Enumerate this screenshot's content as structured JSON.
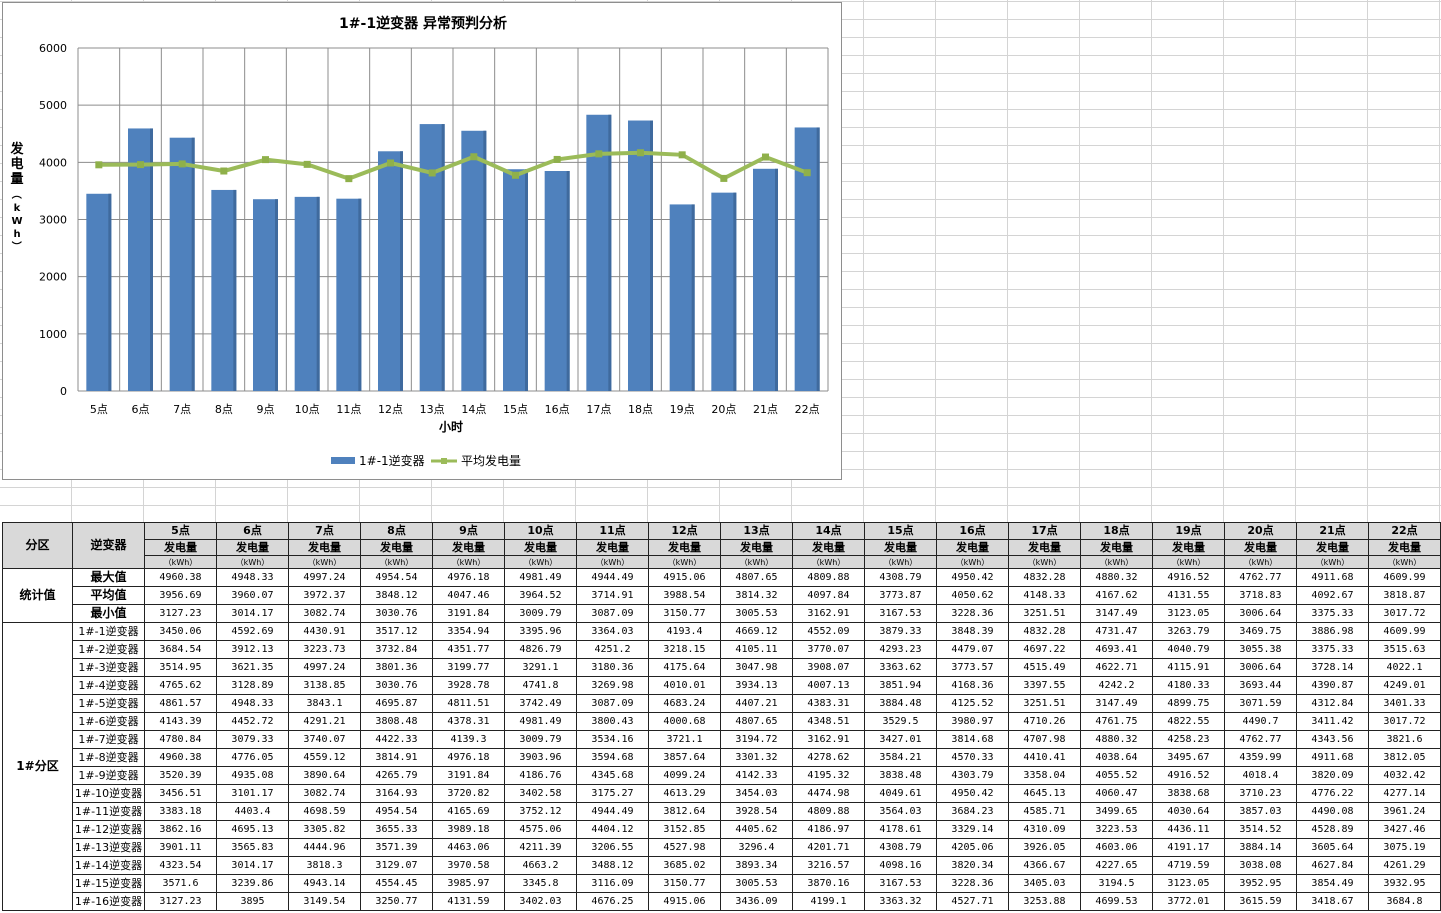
{
  "chart_data": {
    "type": "bar",
    "title": "1#-1逆变器  异常预判分析",
    "xlabel": "小时",
    "ylabel": "发电量（kWh）",
    "ylim": [
      0,
      6000
    ],
    "yticks": [
      0,
      1000,
      2000,
      3000,
      4000,
      5000,
      6000
    ],
    "grid": true,
    "legend_position": "bottom",
    "categories": [
      "5点",
      "6点",
      "7点",
      "8点",
      "9点",
      "10点",
      "11点",
      "12点",
      "13点",
      "14点",
      "15点",
      "16点",
      "17点",
      "18点",
      "19点",
      "20点",
      "21点",
      "22点"
    ],
    "series": [
      {
        "name": "1#-1逆变器",
        "kind": "bar",
        "color": "#4f81bd",
        "values": [
          3450.06,
          4592.69,
          4430.91,
          3517.12,
          3354.94,
          3395.96,
          3364.03,
          4193.4,
          4669.12,
          4552.09,
          3879.33,
          3848.39,
          4832.28,
          4731.47,
          3263.79,
          3469.75,
          3886.98,
          4609.99
        ]
      },
      {
        "name": "平均发电量",
        "kind": "line",
        "color": "#9bbb59",
        "values": [
          3956.69,
          3960.07,
          3972.37,
          3848.12,
          4047.46,
          3964.52,
          3714.91,
          3988.54,
          3814.32,
          4097.84,
          3773.87,
          4050.62,
          4148.33,
          4167.62,
          4131.55,
          3718.83,
          4092.67,
          3818.87
        ]
      }
    ]
  },
  "table": {
    "col_zone": "分区",
    "col_inverter": "逆变器",
    "metric": "发电量",
    "unit": "（kWh）",
    "hours": [
      "5点",
      "6点",
      "7点",
      "8点",
      "9点",
      "10点",
      "11点",
      "12点",
      "13点",
      "14点",
      "15点",
      "16点",
      "17点",
      "18点",
      "19点",
      "20点",
      "21点",
      "22点"
    ],
    "stats_group": "统计值",
    "stats": [
      {
        "label": "最大值",
        "values": [
          "4960.38",
          "4948.33",
          "4997.24",
          "4954.54",
          "4976.18",
          "4981.49",
          "4944.49",
          "4915.06",
          "4807.65",
          "4809.88",
          "4308.79",
          "4950.42",
          "4832.28",
          "4880.32",
          "4916.52",
          "4762.77",
          "4911.68",
          "4609.99"
        ]
      },
      {
        "label": "平均值",
        "values": [
          "3956.69",
          "3960.07",
          "3972.37",
          "3848.12",
          "4047.46",
          "3964.52",
          "3714.91",
          "3988.54",
          "3814.32",
          "4097.84",
          "3773.87",
          "4050.62",
          "4148.33",
          "4167.62",
          "4131.55",
          "3718.83",
          "4092.67",
          "3818.87"
        ]
      },
      {
        "label": "最小值",
        "values": [
          "3127.23",
          "3014.17",
          "3082.74",
          "3030.76",
          "3191.84",
          "3009.79",
          "3087.09",
          "3150.77",
          "3005.53",
          "3162.91",
          "3167.53",
          "3228.36",
          "3251.51",
          "3147.49",
          "3123.05",
          "3006.64",
          "3375.33",
          "3017.72"
        ]
      }
    ],
    "zone_group": "1#分区",
    "inverters": [
      {
        "label": "1#-1逆变器",
        "values": [
          "3450.06",
          "4592.69",
          "4430.91",
          "3517.12",
          "3354.94",
          "3395.96",
          "3364.03",
          "4193.4",
          "4669.12",
          "4552.09",
          "3879.33",
          "3848.39",
          "4832.28",
          "4731.47",
          "3263.79",
          "3469.75",
          "3886.98",
          "4609.99"
        ]
      },
      {
        "label": "1#-2逆变器",
        "values": [
          "3684.54",
          "3912.13",
          "3223.73",
          "3732.84",
          "4351.77",
          "4826.79",
          "4251.2",
          "3218.15",
          "4105.11",
          "3770.07",
          "4293.23",
          "4479.07",
          "4697.22",
          "4693.41",
          "4040.79",
          "3055.38",
          "3375.33",
          "3515.63"
        ]
      },
      {
        "label": "1#-3逆变器",
        "values": [
          "3514.95",
          "3621.35",
          "4997.24",
          "3801.36",
          "3199.77",
          "3291.1",
          "3180.36",
          "4175.64",
          "3047.98",
          "3908.07",
          "3363.62",
          "3773.57",
          "4515.49",
          "4622.71",
          "4115.91",
          "3006.64",
          "3728.14",
          "4022.1"
        ]
      },
      {
        "label": "1#-4逆变器",
        "values": [
          "4765.62",
          "3128.89",
          "3138.85",
          "3030.76",
          "3928.78",
          "4741.8",
          "3269.98",
          "4010.01",
          "3934.13",
          "4007.13",
          "3851.94",
          "4168.36",
          "3397.55",
          "4242.2",
          "4180.33",
          "3693.44",
          "4390.87",
          "4249.01"
        ]
      },
      {
        "label": "1#-5逆变器",
        "values": [
          "4861.57",
          "4948.33",
          "3843.1",
          "4695.87",
          "4811.51",
          "3742.49",
          "3087.09",
          "4683.24",
          "4407.21",
          "4383.31",
          "3884.48",
          "4125.52",
          "3251.51",
          "3147.49",
          "4899.75",
          "3071.59",
          "4312.84",
          "3401.33"
        ]
      },
      {
        "label": "1#-6逆变器",
        "values": [
          "4143.39",
          "4452.72",
          "4291.21",
          "3808.48",
          "4378.31",
          "4981.49",
          "3800.43",
          "4000.68",
          "4807.65",
          "4348.51",
          "3529.5",
          "3980.97",
          "4710.26",
          "4761.75",
          "4822.55",
          "4490.7",
          "3411.42",
          "3017.72"
        ]
      },
      {
        "label": "1#-7逆变器",
        "values": [
          "4780.84",
          "3079.33",
          "3740.07",
          "4422.33",
          "4139.3",
          "3009.79",
          "3534.16",
          "3721.1",
          "3194.72",
          "3162.91",
          "3427.01",
          "3814.68",
          "4707.98",
          "4880.32",
          "4258.23",
          "4762.77",
          "4343.56",
          "3821.6"
        ]
      },
      {
        "label": "1#-8逆变器",
        "values": [
          "4960.38",
          "4776.05",
          "4559.12",
          "3814.91",
          "4976.18",
          "3903.96",
          "3594.68",
          "3857.64",
          "3301.32",
          "4278.62",
          "3584.21",
          "4570.33",
          "4410.41",
          "4038.64",
          "3495.67",
          "4359.99",
          "4911.68",
          "3812.05"
        ]
      },
      {
        "label": "1#-9逆变器",
        "values": [
          "3520.39",
          "4935.08",
          "3890.64",
          "4265.79",
          "3191.84",
          "4186.76",
          "4345.68",
          "4099.24",
          "4142.33",
          "4195.32",
          "3838.48",
          "4303.79",
          "3358.04",
          "4055.52",
          "4916.52",
          "4018.4",
          "3820.09",
          "4032.42"
        ]
      },
      {
        "label": "1#-10逆变器",
        "values": [
          "3456.51",
          "3101.17",
          "3082.74",
          "3164.93",
          "3720.82",
          "3402.58",
          "3175.27",
          "4613.29",
          "3454.03",
          "4474.98",
          "4049.61",
          "4950.42",
          "4645.13",
          "4060.47",
          "3838.68",
          "3710.23",
          "4776.22",
          "4277.14"
        ]
      },
      {
        "label": "1#-11逆变器",
        "values": [
          "3383.18",
          "4403.4",
          "4698.59",
          "4954.54",
          "4165.69",
          "3752.12",
          "4944.49",
          "3812.64",
          "3928.54",
          "4809.88",
          "3564.03",
          "3684.23",
          "4585.71",
          "3499.65",
          "4030.64",
          "3857.03",
          "4490.08",
          "3961.24"
        ]
      },
      {
        "label": "1#-12逆变器",
        "values": [
          "3862.16",
          "4695.13",
          "3305.82",
          "3655.33",
          "3989.18",
          "4575.06",
          "4404.12",
          "3152.85",
          "4405.62",
          "4186.97",
          "4178.61",
          "3329.14",
          "4310.09",
          "3223.53",
          "4436.11",
          "3514.52",
          "4528.89",
          "3427.46"
        ]
      },
      {
        "label": "1#-13逆变器",
        "values": [
          "3901.11",
          "3565.83",
          "4444.96",
          "3571.39",
          "4463.06",
          "4211.39",
          "3206.55",
          "4527.98",
          "3296.4",
          "4201.71",
          "4308.79",
          "4205.06",
          "3926.05",
          "4603.06",
          "4191.17",
          "3884.14",
          "3605.64",
          "3075.19"
        ]
      },
      {
        "label": "1#-14逆变器",
        "values": [
          "4323.54",
          "3014.17",
          "3818.3",
          "3129.07",
          "3970.58",
          "4663.2",
          "3488.12",
          "3685.02",
          "3893.34",
          "3216.57",
          "4098.16",
          "3820.34",
          "4366.67",
          "4227.65",
          "4719.59",
          "3038.08",
          "4627.84",
          "4261.29"
        ]
      },
      {
        "label": "1#-15逆变器",
        "values": [
          "3571.6",
          "3239.86",
          "4943.14",
          "4554.45",
          "3985.97",
          "3345.8",
          "3116.09",
          "3150.77",
          "3005.53",
          "3870.16",
          "3167.53",
          "3228.36",
          "3405.03",
          "3194.5",
          "3123.05",
          "3952.95",
          "3854.49",
          "3932.95"
        ]
      },
      {
        "label": "1#-16逆变器",
        "values": [
          "3127.23",
          "3895",
          "3149.54",
          "3250.77",
          "4131.59",
          "3402.03",
          "4676.25",
          "4915.06",
          "3436.09",
          "4199.1",
          "3363.32",
          "4527.71",
          "3253.88",
          "4699.53",
          "3772.01",
          "3615.59",
          "3418.67",
          "3684.8"
        ]
      }
    ]
  }
}
